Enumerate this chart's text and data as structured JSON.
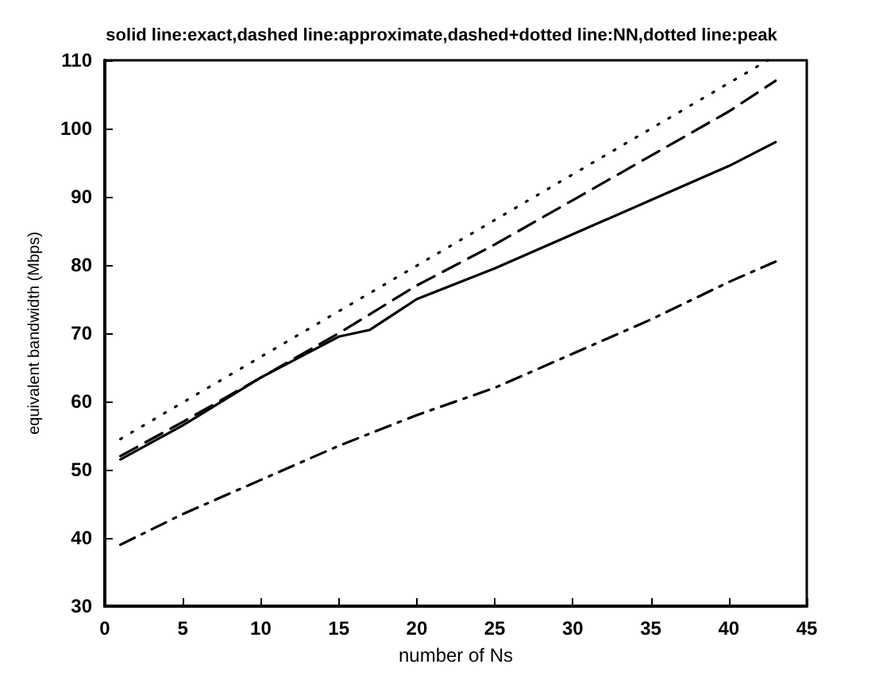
{
  "chart_data": {
    "type": "line",
    "title": "solid line:exact,dashed line:approximate,dashed+dotted line:NN,dotted line:peak",
    "xlabel": "number of Ns",
    "ylabel": "equivalent bandwidth (Mbps)",
    "xlim": [
      0,
      45
    ],
    "ylim": [
      30,
      110
    ],
    "xticks": [
      0,
      5,
      10,
      15,
      20,
      25,
      30,
      35,
      40,
      45
    ],
    "yticks": [
      30,
      40,
      50,
      60,
      70,
      80,
      90,
      100,
      110
    ],
    "grid": false,
    "marker": "none",
    "series": [
      {
        "color": "#000000",
        "line_style": "solid",
        "x": [
          1,
          5,
          10,
          15,
          17,
          20,
          25,
          30,
          35,
          40,
          43
        ],
        "values": [
          51.5,
          56.5,
          63.5,
          69.5,
          70.5,
          75,
          79.5,
          84.5,
          89.5,
          94.5,
          98
        ]
      },
      {
        "color": "#000000",
        "line_style": "dashed",
        "x": [
          1,
          5,
          10,
          15,
          20,
          25,
          30,
          35,
          40,
          43
        ],
        "values": [
          52,
          57,
          63.5,
          70,
          77,
          83,
          89.5,
          96,
          102.5,
          107
        ]
      },
      {
        "color": "#000000",
        "line_style": "dashdot",
        "x": [
          1,
          5,
          10,
          15,
          20,
          25,
          30,
          35,
          40,
          43
        ],
        "values": [
          39,
          43.5,
          48.5,
          53.5,
          58,
          62,
          67,
          72,
          77.5,
          80.5
        ]
      },
      {
        "color": "#000000",
        "line_style": "dotted",
        "x": [
          1,
          42.5
        ],
        "values": [
          54.5,
          110
        ]
      }
    ]
  }
}
